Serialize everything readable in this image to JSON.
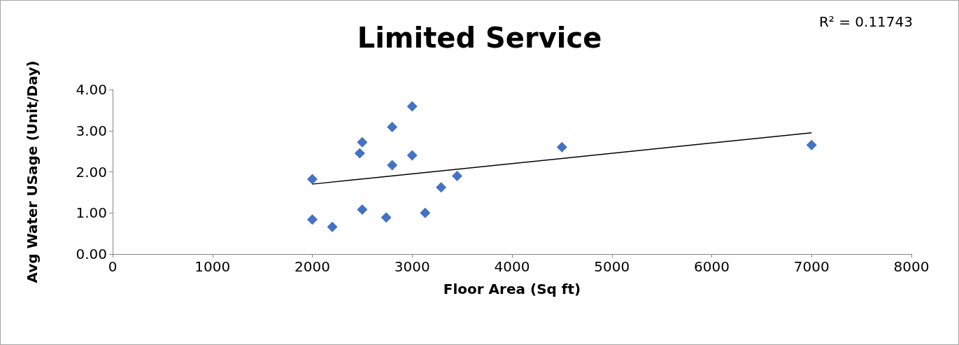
{
  "chart_data": {
    "type": "scatter",
    "title": "Limited Service",
    "xlabel": "Floor Area (Sq ft)",
    "ylabel": "Avg Water USage (Unit/Day)",
    "annotations": [
      "R² = 0.11743"
    ],
    "xlim": [
      0,
      8000
    ],
    "xticks": [
      0,
      1000,
      2000,
      3000,
      4000,
      5000,
      6000,
      7000,
      8000
    ],
    "ylim": [
      0,
      4
    ],
    "yticks": [
      {
        "value": 0,
        "label": "0.00"
      },
      {
        "value": 1,
        "label": "1.00"
      },
      {
        "value": 2,
        "label": "2.00"
      },
      {
        "value": 3,
        "label": "3.00"
      },
      {
        "value": 4,
        "label": "4.00"
      }
    ],
    "grid": false,
    "series": [
      {
        "marker": "diamond",
        "color": "#4472c4",
        "x": [
          2000,
          2000,
          2200,
          2475,
          2500,
          2500,
          2740,
          2800,
          2800,
          3000,
          3000,
          3130,
          3290,
          3450,
          4500,
          7000
        ],
        "values": [
          1.82,
          0.84,
          0.66,
          2.45,
          2.72,
          1.08,
          0.89,
          3.09,
          2.16,
          3.59,
          2.4,
          1.0,
          1.62,
          1.9,
          2.6,
          2.65
        ]
      },
      {
        "type": "line",
        "marker": "none",
        "color": "#000000",
        "x": [
          2000,
          7000
        ],
        "values": [
          1.7,
          2.95
        ]
      }
    ]
  }
}
